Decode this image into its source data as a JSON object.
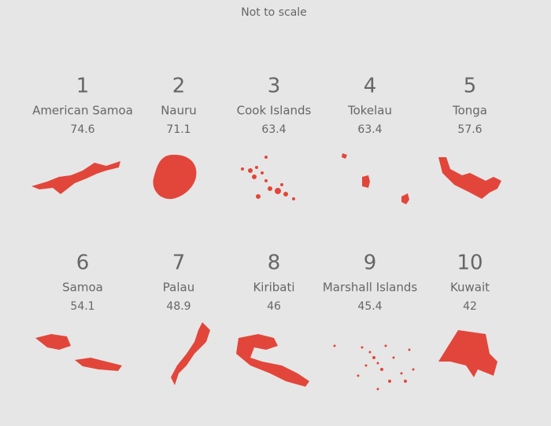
{
  "subtitle": "Not to scale",
  "items": [
    {
      "rank": 1,
      "name": "American Samoa",
      "value": "74.6"
    },
    {
      "rank": 2,
      "name": "Nauru",
      "value": "71.1"
    },
    {
      "rank": 3,
      "name": "Cook Islands",
      "value": "63.4"
    },
    {
      "rank": 4,
      "name": "Tokelau",
      "value": "63.4"
    },
    {
      "rank": 5,
      "name": "Tonga",
      "value": "57.6"
    },
    {
      "rank": 6,
      "name": "Samoa",
      "value": "54.1"
    },
    {
      "rank": 7,
      "name": "Palau",
      "value": "48.9"
    },
    {
      "rank": 8,
      "name": "Kiribati",
      "value": "46"
    },
    {
      "rank": 9,
      "name": "Marshall Islands",
      "value": "45.4"
    },
    {
      "rank": 10,
      "name": "Kuwait",
      "value": "42"
    }
  ]
}
